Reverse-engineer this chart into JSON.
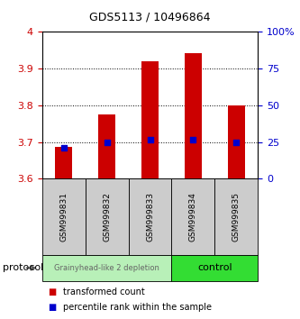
{
  "title": "GDS5113 / 10496864",
  "samples": [
    "GSM999831",
    "GSM999832",
    "GSM999833",
    "GSM999834",
    "GSM999835"
  ],
  "red_bar_tops": [
    3.687,
    3.775,
    3.921,
    3.942,
    3.8
  ],
  "blue_markers": [
    3.685,
    3.7,
    3.705,
    3.705,
    3.7
  ],
  "bar_baseline": 3.6,
  "ylim_left": [
    3.6,
    4.0
  ],
  "ylim_right": [
    0,
    100
  ],
  "yticks_left": [
    3.6,
    3.7,
    3.8,
    3.9,
    4.0
  ],
  "ytick_labels_left": [
    "3.6",
    "3.7",
    "3.8",
    "3.9",
    "4"
  ],
  "yticks_right": [
    0,
    25,
    50,
    75,
    100
  ],
  "ytick_labels_right": [
    "0",
    "25",
    "50",
    "75",
    "100%"
  ],
  "groups": [
    {
      "label": "Grainyhead-like 2 depletion",
      "indices": [
        0,
        1,
        2
      ],
      "color": "#b8f0b8",
      "text_color": "#666666",
      "fontsize": 6
    },
    {
      "label": "control",
      "indices": [
        3,
        4
      ],
      "color": "#33dd33",
      "text_color": "#000000",
      "fontsize": 8
    }
  ],
  "protocol_label": "protocol",
  "bar_color": "#cc0000",
  "marker_color": "#0000cc",
  "bar_width": 0.4,
  "grid_color": "#000000",
  "background_color": "#ffffff",
  "legend_red_label": "transformed count",
  "legend_blue_label": "percentile rank within the sample",
  "left_tick_color": "#cc0000",
  "right_tick_color": "#0000cc",
  "title_fontsize": 9
}
